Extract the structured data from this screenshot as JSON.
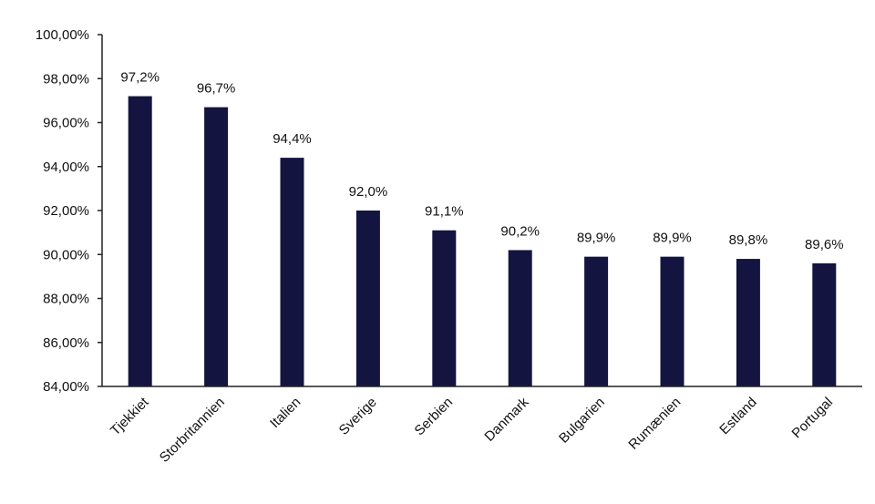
{
  "chart_data": {
    "type": "bar",
    "title": "",
    "xlabel": "",
    "ylabel": "",
    "ylim": [
      84,
      100
    ],
    "yticks": [
      "84,00%",
      "86,00%",
      "88,00%",
      "90,00%",
      "92,00%",
      "94,00%",
      "96,00%",
      "98,00%",
      "100,00%"
    ],
    "categories": [
      "Tjekkiet",
      "Storbritannien",
      "Italien",
      "Sverige",
      "Serbien",
      "Danmark",
      "Bulgarien",
      "Rumænien",
      "Estland",
      "Portugal"
    ],
    "values": [
      97.2,
      96.7,
      94.4,
      92.0,
      91.1,
      90.2,
      89.9,
      89.9,
      89.8,
      89.6
    ],
    "data_labels": [
      "97,2%",
      "96,7%",
      "94,4%",
      "92,0%",
      "91,1%",
      "90,2%",
      "89,9%",
      "89,9%",
      "89,8%",
      "89,6%"
    ],
    "bar_color": "#141440",
    "grid": false,
    "legend": "none"
  }
}
